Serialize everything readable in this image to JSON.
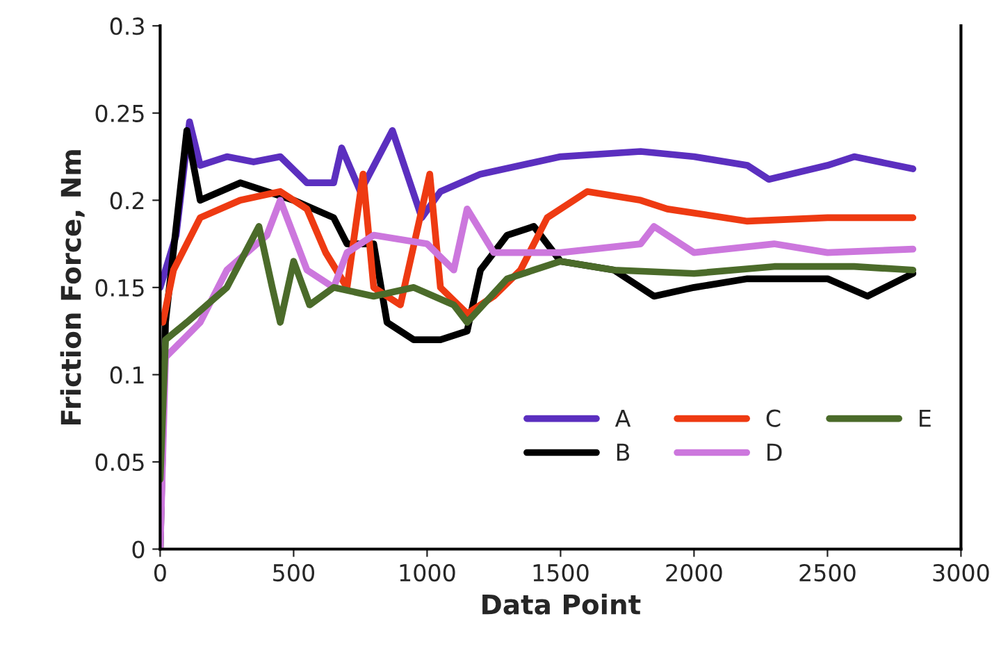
{
  "chart_data": {
    "type": "line",
    "xlabel": "Data Point",
    "ylabel": "Friction Force, Nm",
    "xlim": [
      0,
      3000
    ],
    "xticks": [
      0,
      500,
      1000,
      1500,
      2000,
      2500,
      3000
    ],
    "ylim": [
      0,
      0.3
    ],
    "yticks": [
      0,
      0.05,
      0.1,
      0.15,
      0.2,
      0.25,
      0.3
    ],
    "grid": false,
    "legend": "bottom right",
    "marker": "none",
    "line_style": "solid",
    "series": [
      {
        "name": "A",
        "color": "#5b2fbf",
        "x": [
          0,
          60,
          110,
          150,
          250,
          350,
          450,
          550,
          650,
          680,
          750,
          870,
          980,
          1050,
          1200,
          1500,
          1800,
          2000,
          2200,
          2280,
          2500,
          2600,
          2820
        ],
        "values": [
          0.15,
          0.18,
          0.245,
          0.22,
          0.225,
          0.222,
          0.225,
          0.21,
          0.21,
          0.23,
          0.205,
          0.24,
          0.19,
          0.205,
          0.215,
          0.225,
          0.228,
          0.225,
          0.22,
          0.212,
          0.22,
          0.225,
          0.218
        ]
      },
      {
        "name": "B",
        "color": "#000000",
        "x": [
          0,
          20,
          100,
          150,
          300,
          500,
          650,
          700,
          800,
          850,
          950,
          1050,
          1150,
          1200,
          1300,
          1400,
          1500,
          1700,
          1850,
          2000,
          2200,
          2500,
          2650,
          2820
        ],
        "values": [
          0.0,
          0.13,
          0.24,
          0.2,
          0.21,
          0.2,
          0.19,
          0.175,
          0.175,
          0.13,
          0.12,
          0.12,
          0.125,
          0.16,
          0.18,
          0.185,
          0.165,
          0.16,
          0.145,
          0.15,
          0.155,
          0.155,
          0.145,
          0.158
        ]
      },
      {
        "name": "C",
        "color": "#ee3a12",
        "x": [
          10,
          50,
          150,
          300,
          450,
          550,
          620,
          700,
          760,
          800,
          900,
          1010,
          1050,
          1150,
          1250,
          1350,
          1450,
          1600,
          1800,
          1900,
          2200,
          2500,
          2820
        ],
        "values": [
          0.13,
          0.16,
          0.19,
          0.2,
          0.205,
          0.195,
          0.17,
          0.15,
          0.215,
          0.15,
          0.14,
          0.215,
          0.15,
          0.135,
          0.145,
          0.16,
          0.19,
          0.205,
          0.2,
          0.195,
          0.188,
          0.19,
          0.19
        ]
      },
      {
        "name": "D",
        "color": "#cc77dd",
        "x": [
          0,
          20,
          150,
          250,
          400,
          450,
          550,
          650,
          700,
          800,
          1000,
          1100,
          1150,
          1250,
          1500,
          1800,
          1850,
          2000,
          2300,
          2500,
          2820
        ],
        "values": [
          0.0,
          0.11,
          0.13,
          0.16,
          0.18,
          0.2,
          0.16,
          0.15,
          0.17,
          0.18,
          0.175,
          0.16,
          0.195,
          0.17,
          0.17,
          0.175,
          0.185,
          0.17,
          0.175,
          0.17,
          0.172
        ]
      },
      {
        "name": "E",
        "color": "#4b6b2a",
        "x": [
          0,
          20,
          100,
          250,
          370,
          420,
          450,
          500,
          560,
          650,
          800,
          950,
          1100,
          1150,
          1300,
          1500,
          1700,
          2000,
          2300,
          2600,
          2820
        ],
        "values": [
          0.04,
          0.12,
          0.13,
          0.15,
          0.185,
          0.15,
          0.13,
          0.165,
          0.14,
          0.15,
          0.145,
          0.15,
          0.14,
          0.13,
          0.155,
          0.165,
          0.16,
          0.158,
          0.162,
          0.162,
          0.16
        ]
      }
    ]
  }
}
